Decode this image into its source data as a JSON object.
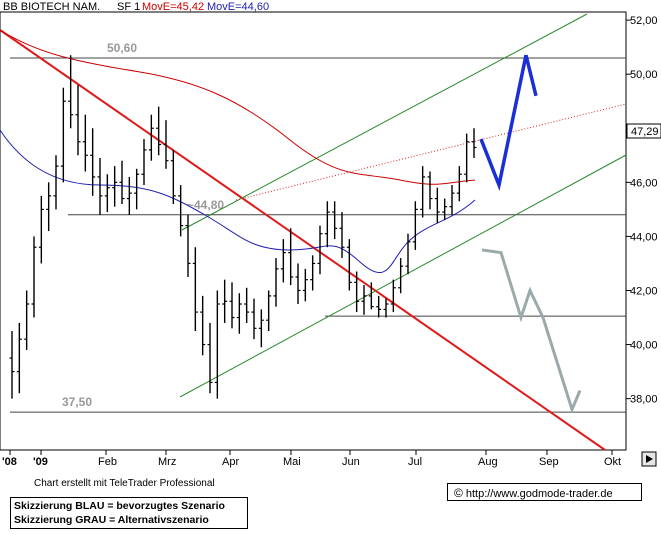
{
  "header": {
    "instrument": "BB BIOTECH NAM.",
    "settings": "SF 1",
    "ma1_label": "MovE=45,42",
    "ma2_label": "MovE=44,60",
    "ma1_color": "#cc0000",
    "ma2_color": "#1f1fb0"
  },
  "footer": {
    "credit": "Chart erstellt mit TeleTrader Professional",
    "note_blue": "Skizzierung BLAU = bevorzugtes Szenario",
    "note_gray": "Skizzierung GRAU = Alternativszenario",
    "url": "http://www.godmode-trader.de",
    "copyright_symbol": "©"
  },
  "chart_data": {
    "type": "bar",
    "subtype": "ohlc",
    "title": "BB BIOTECH NAM.",
    "ylim": [
      36.1,
      52.3
    ],
    "y_ticks": [
      "38,00",
      "40,00",
      "42,00",
      "44,00",
      "46,00",
      "48,00",
      "50,00",
      "52,00"
    ],
    "x_ticks": [
      "'08",
      "'09",
      "Feb",
      "Mrz",
      "Apr",
      "Mai",
      "Jun",
      "Jul",
      "Aug",
      "Sep",
      "Okt"
    ],
    "last_price_label": "47,29",
    "last_price": 47.29,
    "levels": [
      {
        "label": "50,60",
        "value": 50.6
      },
      {
        "label": "~44,80",
        "value": 44.8
      },
      {
        "label": "",
        "value": 41.05
      },
      {
        "label": "37,50",
        "value": 37.5
      }
    ],
    "series": [
      {
        "name": "MovE=45,42",
        "color": "#cc0000",
        "points": [
          [
            "Dez '08",
            51.4
          ],
          [
            "Feb",
            49.5
          ],
          [
            "Mrz",
            48.9
          ],
          [
            "Apr",
            47.8
          ],
          [
            "Mai",
            46.5
          ],
          [
            "Jun",
            45.6
          ],
          [
            "Jul",
            45.4
          ]
        ]
      },
      {
        "name": "MovE=44,60",
        "color": "#1f1fb0",
        "points": [
          [
            "Dez '08",
            48.5
          ],
          [
            "Feb",
            46.0
          ],
          [
            "Mrz",
            44.0
          ],
          [
            "Apr",
            42.3
          ],
          [
            "Mai",
            42.3
          ],
          [
            "Jun",
            42.8
          ],
          [
            "Jul",
            43.6
          ],
          [
            "Aug",
            44.6
          ]
        ]
      }
    ],
    "scenarios": [
      {
        "name": "bevorzugtes Szenario",
        "color": "#1a2fd6",
        "points": [
          47.6,
          45.9,
          50.7,
          49.2
        ]
      },
      {
        "name": "Alternativszenario",
        "color": "#9aaaaa",
        "points": [
          43.5,
          43.4,
          41.0,
          42.0,
          41.0,
          37.6,
          38.3
        ]
      }
    ],
    "ohlc": [
      [
        39.5,
        40.5,
        38.0,
        39.0
      ],
      [
        39.0,
        40.8,
        38.2,
        40.2
      ],
      [
        40.2,
        42.0,
        39.8,
        41.5
      ],
      [
        41.5,
        44.0,
        41.0,
        43.6
      ],
      [
        43.6,
        45.5,
        43.0,
        45.0
      ],
      [
        45.0,
        46.0,
        44.2,
        45.5
      ],
      [
        45.5,
        47.0,
        45.0,
        46.6
      ],
      [
        46.6,
        49.5,
        46.0,
        49.0
      ],
      [
        49.0,
        50.7,
        48.0,
        48.5
      ],
      [
        48.5,
        49.6,
        47.0,
        47.5
      ],
      [
        47.5,
        48.5,
        46.4,
        47.0
      ],
      [
        47.0,
        48.0,
        45.5,
        46.2
      ],
      [
        46.2,
        46.9,
        44.8,
        45.5
      ],
      [
        45.5,
        46.3,
        44.9,
        45.8
      ],
      [
        45.8,
        46.6,
        45.1,
        46.0
      ],
      [
        46.0,
        46.8,
        45.2,
        45.4
      ],
      [
        45.4,
        46.2,
        44.8,
        45.6
      ],
      [
        45.6,
        46.5,
        45.0,
        46.3
      ],
      [
        46.3,
        47.6,
        45.9,
        47.2
      ],
      [
        47.2,
        48.5,
        46.8,
        48.0
      ],
      [
        48.0,
        48.8,
        47.0,
        47.4
      ],
      [
        47.4,
        48.3,
        46.5,
        46.8
      ],
      [
        46.8,
        47.2,
        45.2,
        45.5
      ],
      [
        45.5,
        45.9,
        44.0,
        44.4
      ],
      [
        44.4,
        44.8,
        42.5,
        43.0
      ],
      [
        43.0,
        43.6,
        40.5,
        41.2
      ],
      [
        41.2,
        41.8,
        39.6,
        40.0
      ],
      [
        40.0,
        40.8,
        38.2,
        38.6
      ],
      [
        38.6,
        42.0,
        38.0,
        41.5
      ],
      [
        41.5,
        42.4,
        40.8,
        41.6
      ],
      [
        41.6,
        42.3,
        40.6,
        41.0
      ],
      [
        41.0,
        41.9,
        40.4,
        41.5
      ],
      [
        41.5,
        42.1,
        40.8,
        41.2
      ],
      [
        41.2,
        41.7,
        40.2,
        40.6
      ],
      [
        40.6,
        41.3,
        39.9,
        40.9
      ],
      [
        40.9,
        42.0,
        40.5,
        41.8
      ],
      [
        41.8,
        43.2,
        41.4,
        42.8
      ],
      [
        42.8,
        43.9,
        42.3,
        43.4
      ],
      [
        43.4,
        44.3,
        42.2,
        42.5
      ],
      [
        42.5,
        43.0,
        41.5,
        42.0
      ],
      [
        42.0,
        42.8,
        41.6,
        42.4
      ],
      [
        42.4,
        43.3,
        42.0,
        43.0
      ],
      [
        43.0,
        44.4,
        42.6,
        44.1
      ],
      [
        44.1,
        45.3,
        43.6,
        44.9
      ],
      [
        44.9,
        45.3,
        43.9,
        44.3
      ],
      [
        44.3,
        44.9,
        43.2,
        43.6
      ],
      [
        43.6,
        43.9,
        42.0,
        42.3
      ],
      [
        42.3,
        42.7,
        41.2,
        41.6
      ],
      [
        41.6,
        42.2,
        41.1,
        41.8
      ],
      [
        41.8,
        42.3,
        41.3,
        41.4
      ],
      [
        41.4,
        41.8,
        41.0,
        41.3
      ],
      [
        41.3,
        41.7,
        41.0,
        41.5
      ],
      [
        41.5,
        42.4,
        41.2,
        42.1
      ],
      [
        42.1,
        43.2,
        41.9,
        42.9
      ],
      [
        42.9,
        44.1,
        42.6,
        43.8
      ],
      [
        43.8,
        45.3,
        43.5,
        45.0
      ],
      [
        45.0,
        46.6,
        44.7,
        46.2
      ],
      [
        46.2,
        46.4,
        45.0,
        45.4
      ],
      [
        45.4,
        45.8,
        44.5,
        44.9
      ],
      [
        44.9,
        45.4,
        44.6,
        45.1
      ],
      [
        45.1,
        45.9,
        44.8,
        45.6
      ],
      [
        45.6,
        46.6,
        45.3,
        46.3
      ],
      [
        46.3,
        47.8,
        46.0,
        47.5
      ],
      [
        47.5,
        48.0,
        46.9,
        47.29
      ]
    ]
  }
}
